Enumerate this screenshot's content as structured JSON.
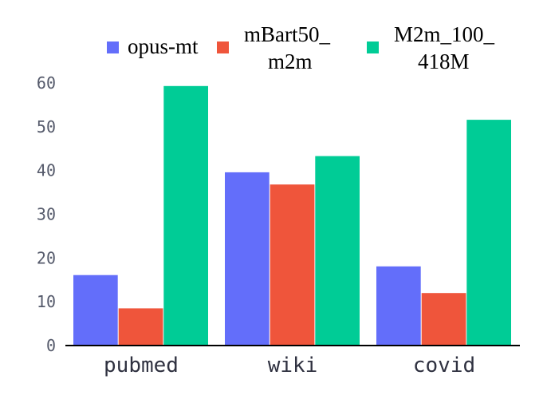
{
  "chart_data": {
    "type": "bar",
    "categories": [
      "pubmed",
      "wiki",
      "covid"
    ],
    "series": [
      {
        "name": "opus-mt",
        "color": "#636efa",
        "values": [
          16.1,
          39.6,
          18.1
        ]
      },
      {
        "name": "mBart50_\nm2m",
        "color": "#ef553b",
        "values": [
          8.5,
          36.8,
          12.0
        ]
      },
      {
        "name": "M2m_100_\n418M",
        "color": "#00cc96",
        "values": [
          59.3,
          43.3,
          51.6
        ]
      }
    ],
    "title": "",
    "xlabel": "",
    "ylabel": "",
    "ylim": [
      0,
      60
    ],
    "yticks": [
      0,
      10,
      20,
      30,
      40,
      50,
      60
    ],
    "grid": false,
    "legend_position": "top"
  }
}
